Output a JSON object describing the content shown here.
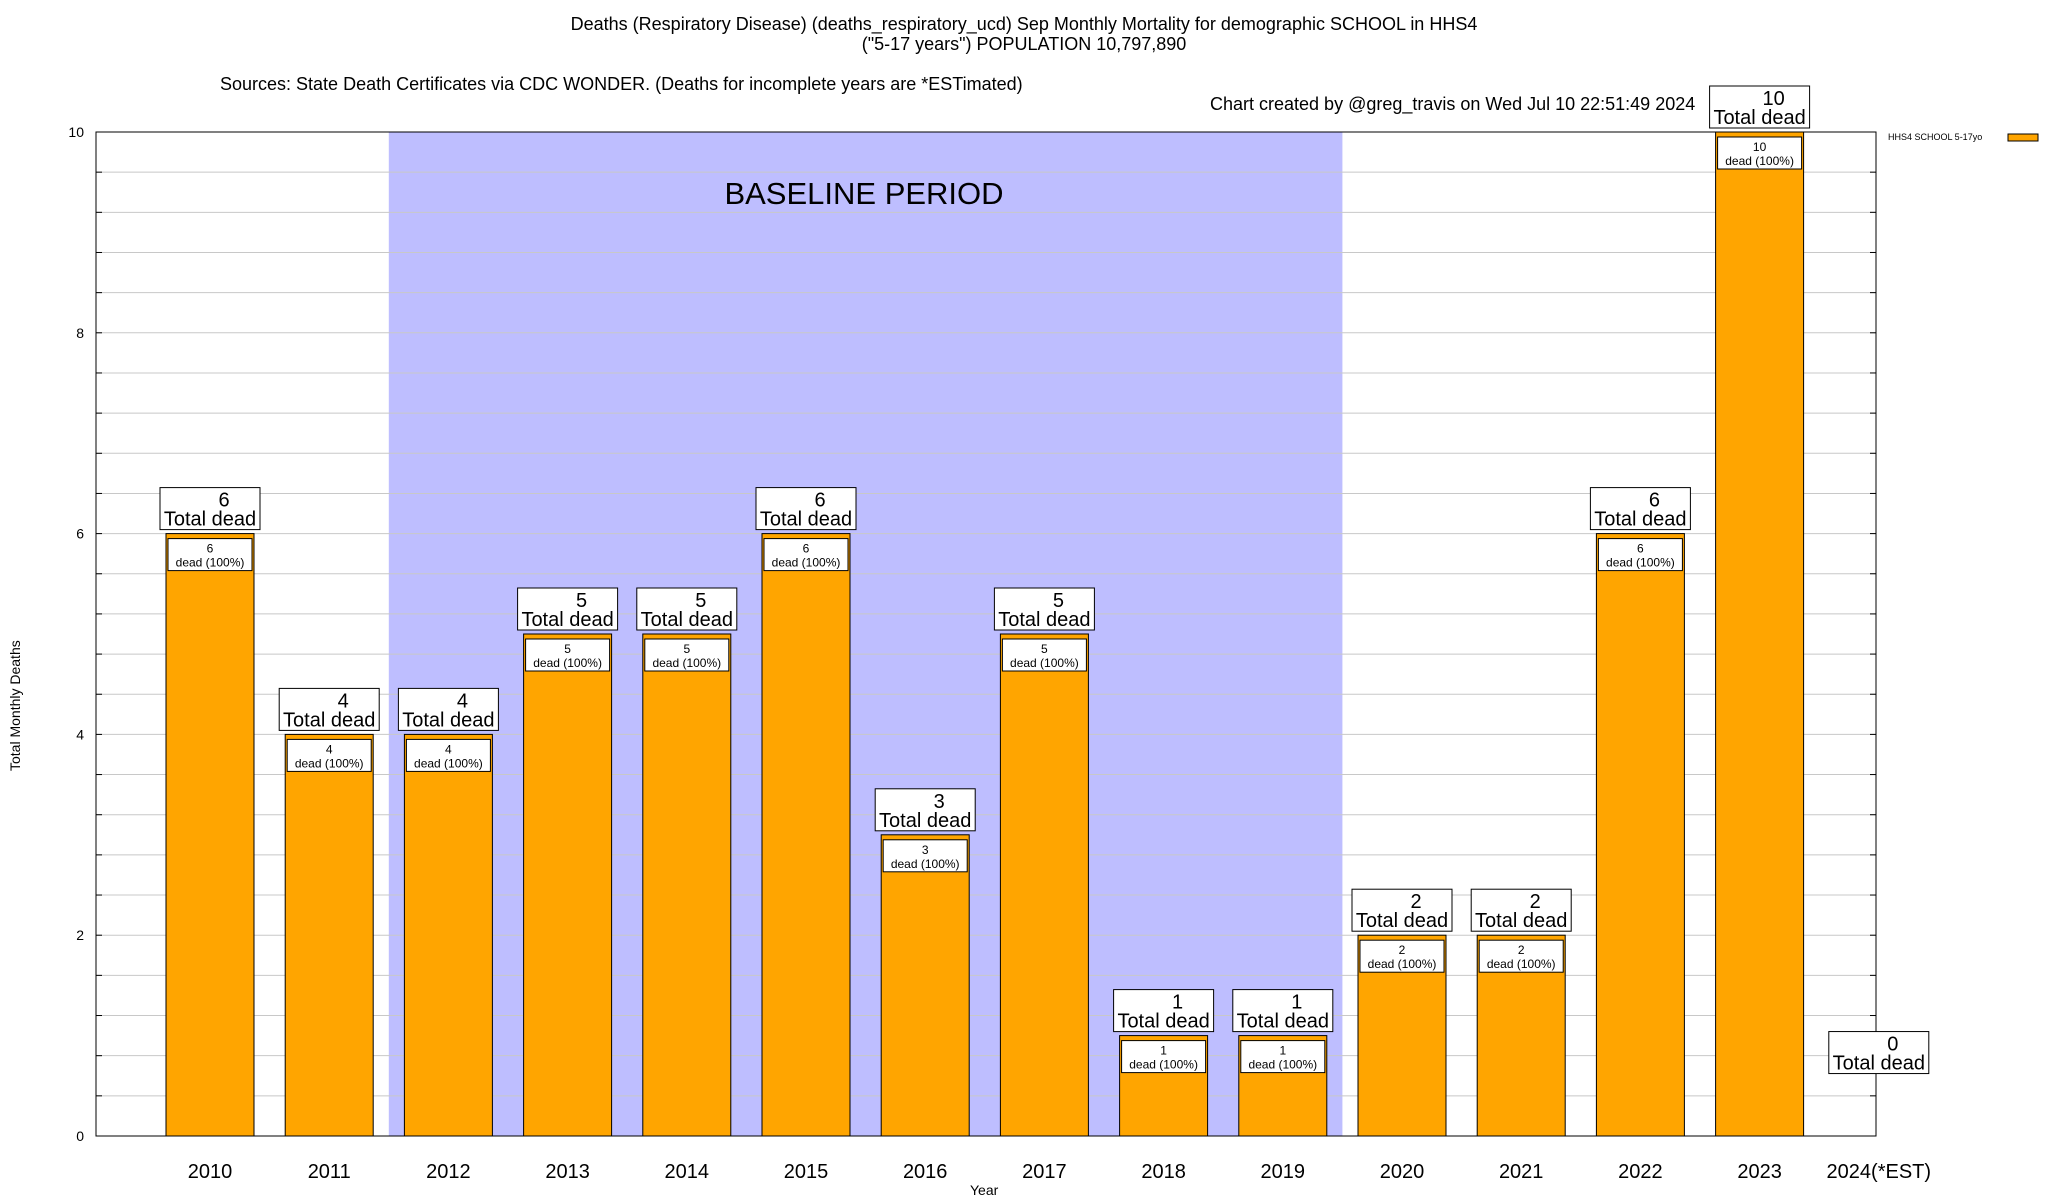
{
  "chart_data": {
    "type": "bar",
    "title": "Deaths (Respiratory Disease) (deaths_respiratory_ucd) Sep Monthly Mortality for demographic SCHOOL in HHS4",
    "subtitle": "(\"5-17 years\") POPULATION 10,797,890",
    "source_line": "Sources: State Death Certificates via CDC WONDER. (Deaths for incomplete years are *ESTimated)",
    "credit_line": "Chart created by @greg_travis on Wed Jul 10 22:51:49 2024",
    "xlabel": "Year",
    "ylabel": "Total Monthly Deaths",
    "ylim": [
      0,
      10
    ],
    "yticks": [
      0,
      2,
      4,
      6,
      8,
      10
    ],
    "categories": [
      "2010",
      "2011",
      "2012",
      "2013",
      "2014",
      "2015",
      "2016",
      "2017",
      "2018",
      "2019",
      "2020",
      "2021",
      "2022",
      "2023",
      "2024(*EST)"
    ],
    "series": [
      {
        "name": "HHS4 SCHOOL 5-17yo",
        "color": "#FFA500",
        "values": [
          6,
          4,
          4,
          5,
          5,
          6,
          3,
          5,
          1,
          1,
          2,
          2,
          6,
          10,
          0
        ]
      }
    ],
    "total_label_suffix": "Total dead",
    "inner_label_suffix": "dead (100%)",
    "baseline_label": "BASELINE PERIOD",
    "baseline_range": [
      "2012",
      "2019"
    ],
    "baseline_color": "#BEBEFF",
    "legend_position": "top-right",
    "grid": true
  }
}
